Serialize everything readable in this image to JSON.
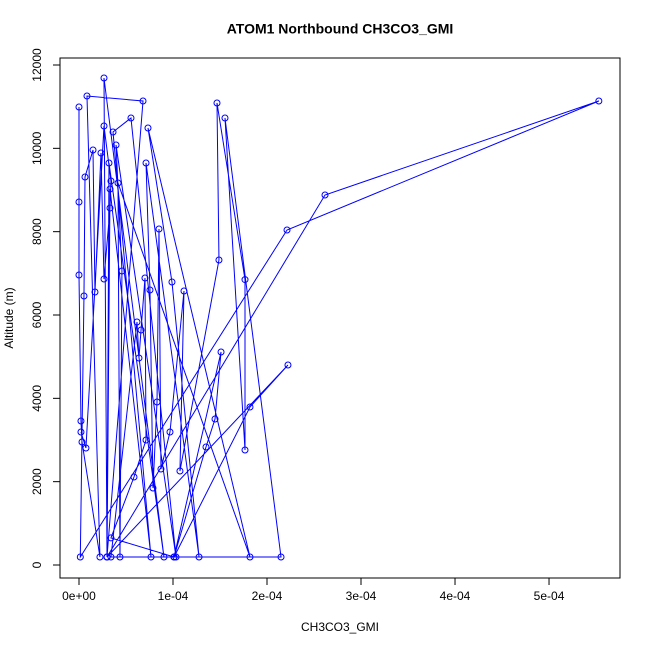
{
  "chart_data": {
    "type": "line",
    "markers": true,
    "title": "ATOM1 Northbound CH3CO3_GMI",
    "xlabel": "CH3CO3_GMI",
    "ylabel": "Altitude (m)",
    "xlim": [
      -2.02e-05,
      0.0005755
    ],
    "ylim": [
      -312,
      12168
    ],
    "xticks": [
      {
        "value": 0,
        "label": "0e+00"
      },
      {
        "value": 0.0001,
        "label": "1e-04"
      },
      {
        "value": 0.0002,
        "label": "2e-04"
      },
      {
        "value": 0.0003,
        "label": "3e-04"
      },
      {
        "value": 0.0004,
        "label": "4e-04"
      },
      {
        "value": 0.0005,
        "label": "5e-04"
      }
    ],
    "yticks": [
      0,
      2000,
      4000,
      6000,
      8000,
      10000,
      12000
    ],
    "series": [
      {
        "color": "#0000ff",
        "x": [
          0,
          0,
          0,
          2.1e-06,
          3.2e-06,
          2.23e-05,
          8.5e-06,
          6.81e-05,
          2.98e-05,
          2.66e-05,
          9.04e-05,
          3.19e-05,
          2.98e-05,
          3.3e-05,
          7.66e-05,
          3.62e-05,
          5.53e-05,
          0.0001032,
          3.94e-05,
          4.57e-05,
          4.36e-05,
          4.15e-05,
          0.0001819,
          7.34e-05,
          9.89e-05,
          0.0001277,
          7.13e-05,
          7.55e-05,
          7.87e-05,
          8.3e-05,
          8.51e-05,
          8.72e-05,
          9.68e-05,
          0.0001117,
          0.0001074,
          0.0001489,
          0.0001468,
          0.0001766,
          0.0001766,
          0.0001553,
          0.0002149,
          3.4e-05,
          6.17e-05,
          6.38e-05,
          6.6e-05,
          7.02e-05,
          7.13e-05,
          5.85e-05,
          3.4e-05,
          0.0001011,
          0.0001351,
          0.0001447,
          0.0001511,
          0.0001011,
          0.0001819,
          0.0002223,
          2.98e-05,
          0.0002617,
          0.000553,
          0.0002213,
          1.4e-06,
          5.3e-06,
          6.4e-06,
          1.49e-05,
          1.7e-05,
          2.34e-05,
          2.66e-05,
          3.3e-05,
          3.4e-05,
          2.66e-05,
          7.4e-06,
          2.1e-06
        ],
        "values": [
          10992,
          8712,
          6960,
          3456,
          2952,
          192,
          11256,
          11136,
          192,
          11688,
          192,
          9648,
          192,
          9024,
          192,
          10392,
          10728,
          192,
          10080,
          7056,
          192,
          9168,
          192,
          10488,
          6792,
          192,
          9648,
          6600,
          1848,
          3912,
          8064,
          2304,
          3192,
          6576,
          2256,
          7320,
          11088,
          6850,
          2760,
          10728,
          192,
          192,
          5832,
          4968,
          5640,
          6888,
          3000,
          2112,
          650,
          192,
          2832,
          3504,
          5112,
          192,
          3792,
          4800,
          192,
          8880,
          11136,
          8040,
          192,
          6456,
          9312,
          9960,
          6552,
          9888,
          6864,
          8568,
          9216,
          10536,
          2808,
          3192
        ]
      }
    ]
  }
}
